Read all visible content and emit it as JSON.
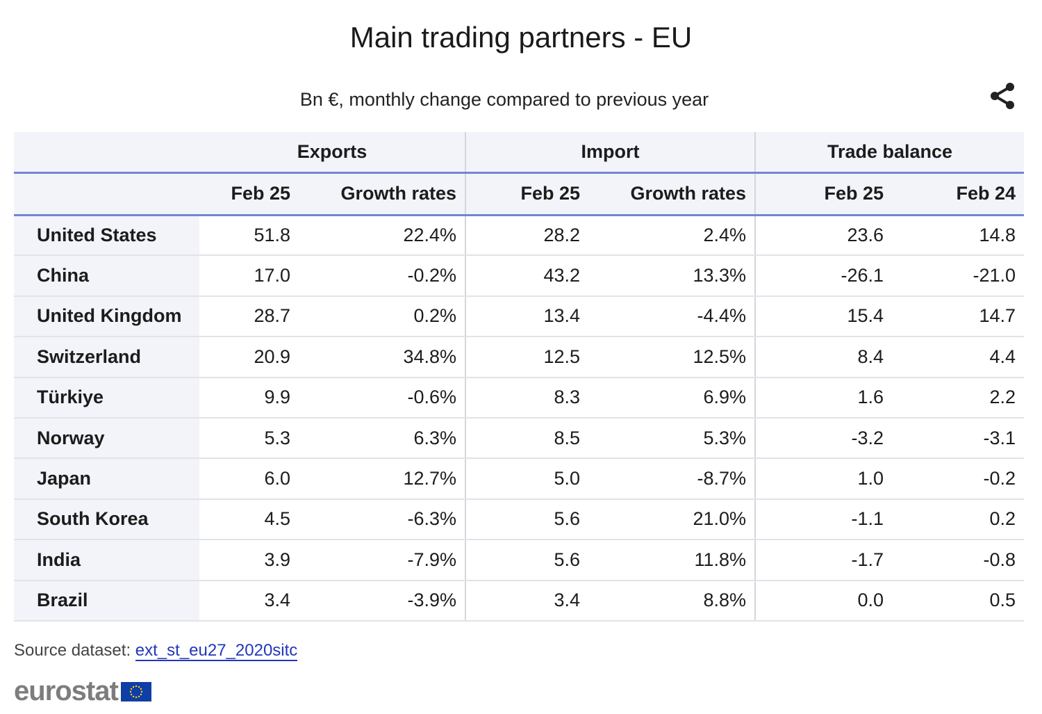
{
  "title": "Main trading partners - EU",
  "subtitle": "Bn €, monthly change compared to previous year",
  "share_icon": "share-icon",
  "groups": [
    "Exports",
    "Import",
    "Trade balance"
  ],
  "columns": [
    "Feb 25",
    "Growth rates",
    "Feb 25",
    "Growth rates",
    "Feb 25",
    "Feb 24"
  ],
  "rows": [
    {
      "country": "United States",
      "values": [
        "51.8",
        "22.4%",
        "28.2",
        "2.4%",
        "23.6",
        "14.8"
      ]
    },
    {
      "country": "China",
      "values": [
        "17.0",
        "-0.2%",
        "43.2",
        "13.3%",
        "-26.1",
        "-21.0"
      ]
    },
    {
      "country": "United Kingdom",
      "values": [
        "28.7",
        "0.2%",
        "13.4",
        "-4.4%",
        "15.4",
        "14.7"
      ]
    },
    {
      "country": "Switzerland",
      "values": [
        "20.9",
        "34.8%",
        "12.5",
        "12.5%",
        "8.4",
        "4.4"
      ]
    },
    {
      "country": "Türkiye",
      "values": [
        "9.9",
        "-0.6%",
        "8.3",
        "6.9%",
        "1.6",
        "2.2"
      ]
    },
    {
      "country": "Norway",
      "values": [
        "5.3",
        "6.3%",
        "8.5",
        "5.3%",
        "-3.2",
        "-3.1"
      ]
    },
    {
      "country": "Japan",
      "values": [
        "6.0",
        "12.7%",
        "5.0",
        "-8.7%",
        "1.0",
        "-0.2"
      ]
    },
    {
      "country": "South Korea",
      "values": [
        "4.5",
        "-6.3%",
        "5.6",
        "21.0%",
        "-1.1",
        "0.2"
      ]
    },
    {
      "country": "India",
      "values": [
        "3.9",
        "-7.9%",
        "5.6",
        "11.8%",
        "-1.7",
        "-0.8"
      ]
    },
    {
      "country": "Brazil",
      "values": [
        "3.4",
        "-3.9%",
        "3.4",
        "8.8%",
        "0.0",
        "0.5"
      ]
    }
  ],
  "source": {
    "label": "Source dataset:",
    "link": "ext_st_eu27_2020sitc"
  },
  "logo": {
    "text": "eurostat"
  },
  "colors": {
    "header_bg": "#f3f4f9",
    "rule": "#6f87d3",
    "link": "#2337b8",
    "eu_flag": "#0f3ea6"
  }
}
